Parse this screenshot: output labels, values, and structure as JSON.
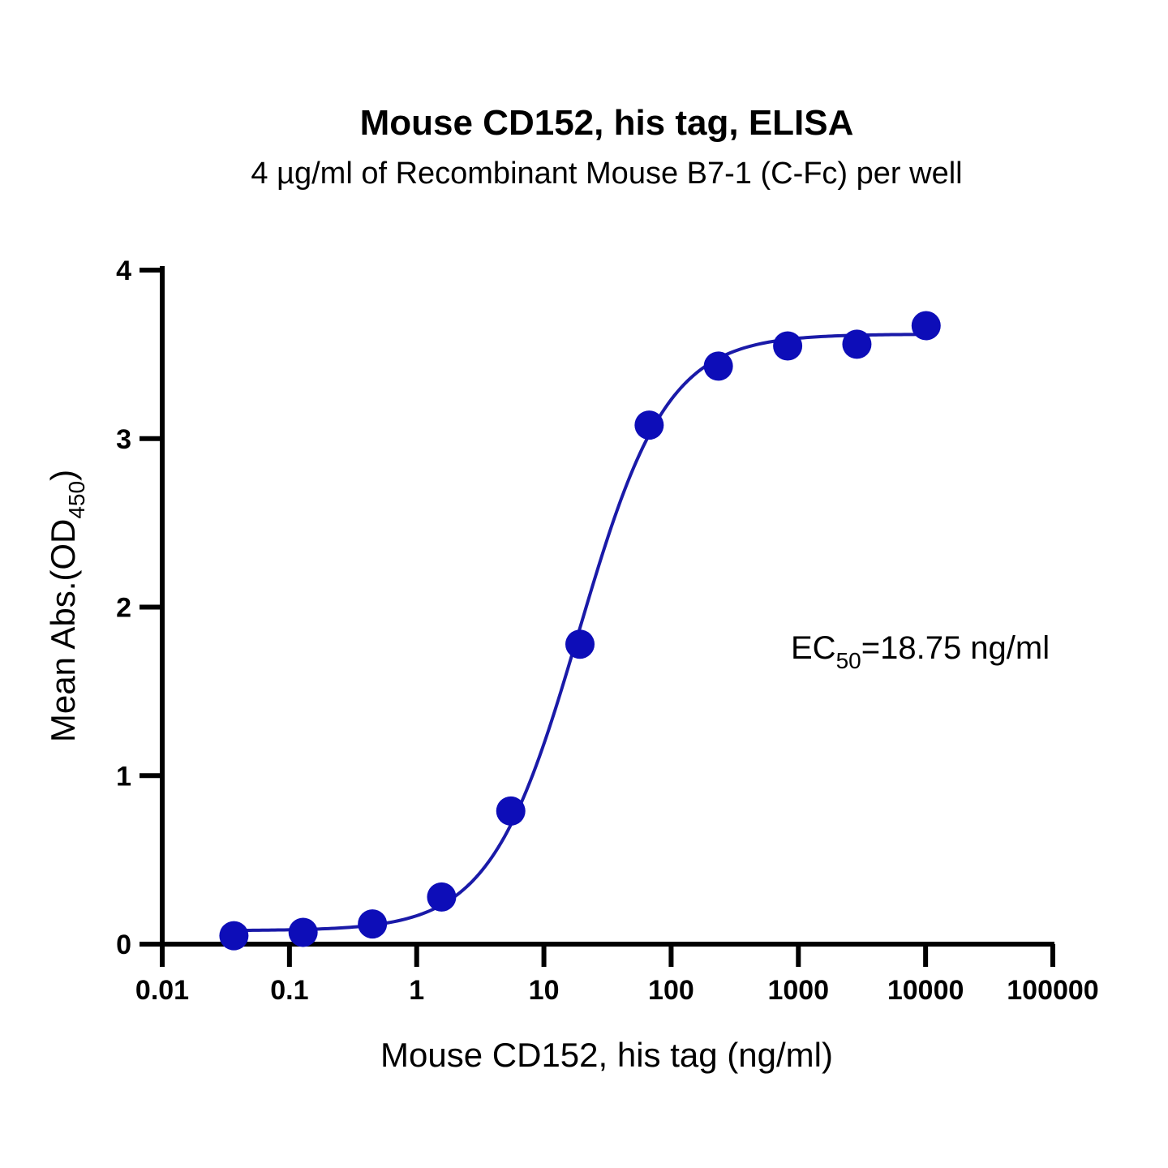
{
  "chart_data": {
    "type": "scatter",
    "title": "Mouse CD152, his tag, ELISA",
    "subtitle": "4 µg/ml of Recombinant Mouse B7-1 (C-Fc) per well",
    "xlabel": "Mouse CD152, his tag (ng/ml)",
    "ylabel_main": "Mean Abs.(OD",
    "ylabel_sub": "450",
    "ylabel_close": ")",
    "xscale": "log",
    "xlim": [
      0.01,
      100000
    ],
    "ylim": [
      0,
      4
    ],
    "xticks": [
      0.01,
      0.1,
      1,
      10,
      100,
      1000,
      10000,
      100000
    ],
    "xtick_labels": [
      "0.01",
      "0.1",
      "1",
      "10",
      "100",
      "1000",
      "10000",
      "100000"
    ],
    "yticks": [
      0,
      1,
      2,
      3,
      4
    ],
    "ytick_labels": [
      "0",
      "1",
      "2",
      "3",
      "4"
    ],
    "grid": false,
    "series": [
      {
        "x": [
          0.0366,
          0.128,
          0.449,
          1.57,
          5.49,
          19.2,
          67.2,
          235,
          824,
          2884,
          10094
        ],
        "y": [
          0.05,
          0.07,
          0.12,
          0.28,
          0.79,
          1.78,
          3.08,
          3.43,
          3.55,
          3.56,
          3.67
        ],
        "color": "#0d0db8",
        "marker": "circle"
      }
    ],
    "fit_curve": {
      "type": "4PL",
      "bottom": 0.08,
      "top": 3.62,
      "ec50": 18.75,
      "hill": 1.25,
      "color": "#1a1aa8"
    },
    "annotation": {
      "main": "EC",
      "sub": "50",
      "rest": "=18.75 ng/ml"
    }
  }
}
